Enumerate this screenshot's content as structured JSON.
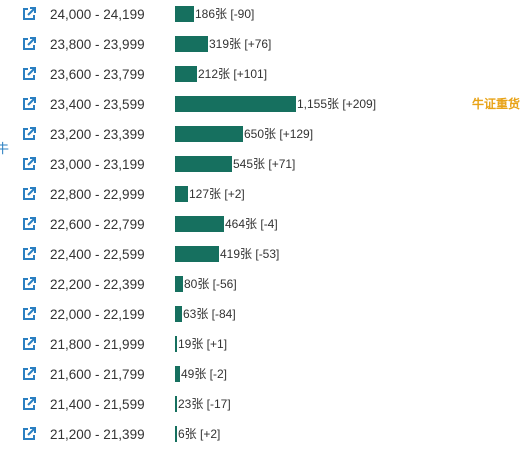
{
  "theme": {
    "bar_color": "#16705f",
    "icon_color": "#2a7fc1",
    "tag_color": "#e8a317",
    "edge_color": "#2a7fc1"
  },
  "icons": {
    "row_link": "external-link-icon"
  },
  "side_tag": {
    "label": "牛证重货"
  },
  "edge_glyph": {
    "text": "牛"
  },
  "chart_data": {
    "type": "bar",
    "orientation": "horizontal",
    "unit_suffix": "张",
    "categories": [
      "24,000 - 24,199",
      "23,800 - 23,999",
      "23,600 - 23,799",
      "23,400 - 23,599",
      "23,200 - 23,399",
      "23,000 - 23,199",
      "22,800 - 22,999",
      "22,600 - 22,799",
      "22,400 - 22,599",
      "22,200 - 22,399",
      "22,000 - 22,199",
      "21,800 - 21,999",
      "21,600 - 21,799",
      "21,400 - 21,599",
      "21,200 - 21,399"
    ],
    "values": [
      186,
      319,
      212,
      1155,
      650,
      545,
      127,
      464,
      419,
      80,
      63,
      19,
      49,
      23,
      6
    ],
    "labels": [
      "186张 [-90]",
      "319张 [+76]",
      "212张 [+101]",
      "1,155张 [+209]",
      "650张 [+129]",
      "545张 [+71]",
      "127张 [+2]",
      "464张 [-4]",
      "419张 [-53]",
      "80张 [-56]",
      "63张 [-84]",
      "19张 [+1]",
      "49张 [-2]",
      "23张 [-17]",
      "6张 [+2]"
    ],
    "changes": [
      -90,
      76,
      101,
      209,
      129,
      71,
      2,
      -4,
      -53,
      -56,
      -84,
      1,
      -2,
      -17,
      2
    ],
    "xlim": [
      0,
      1155
    ]
  }
}
